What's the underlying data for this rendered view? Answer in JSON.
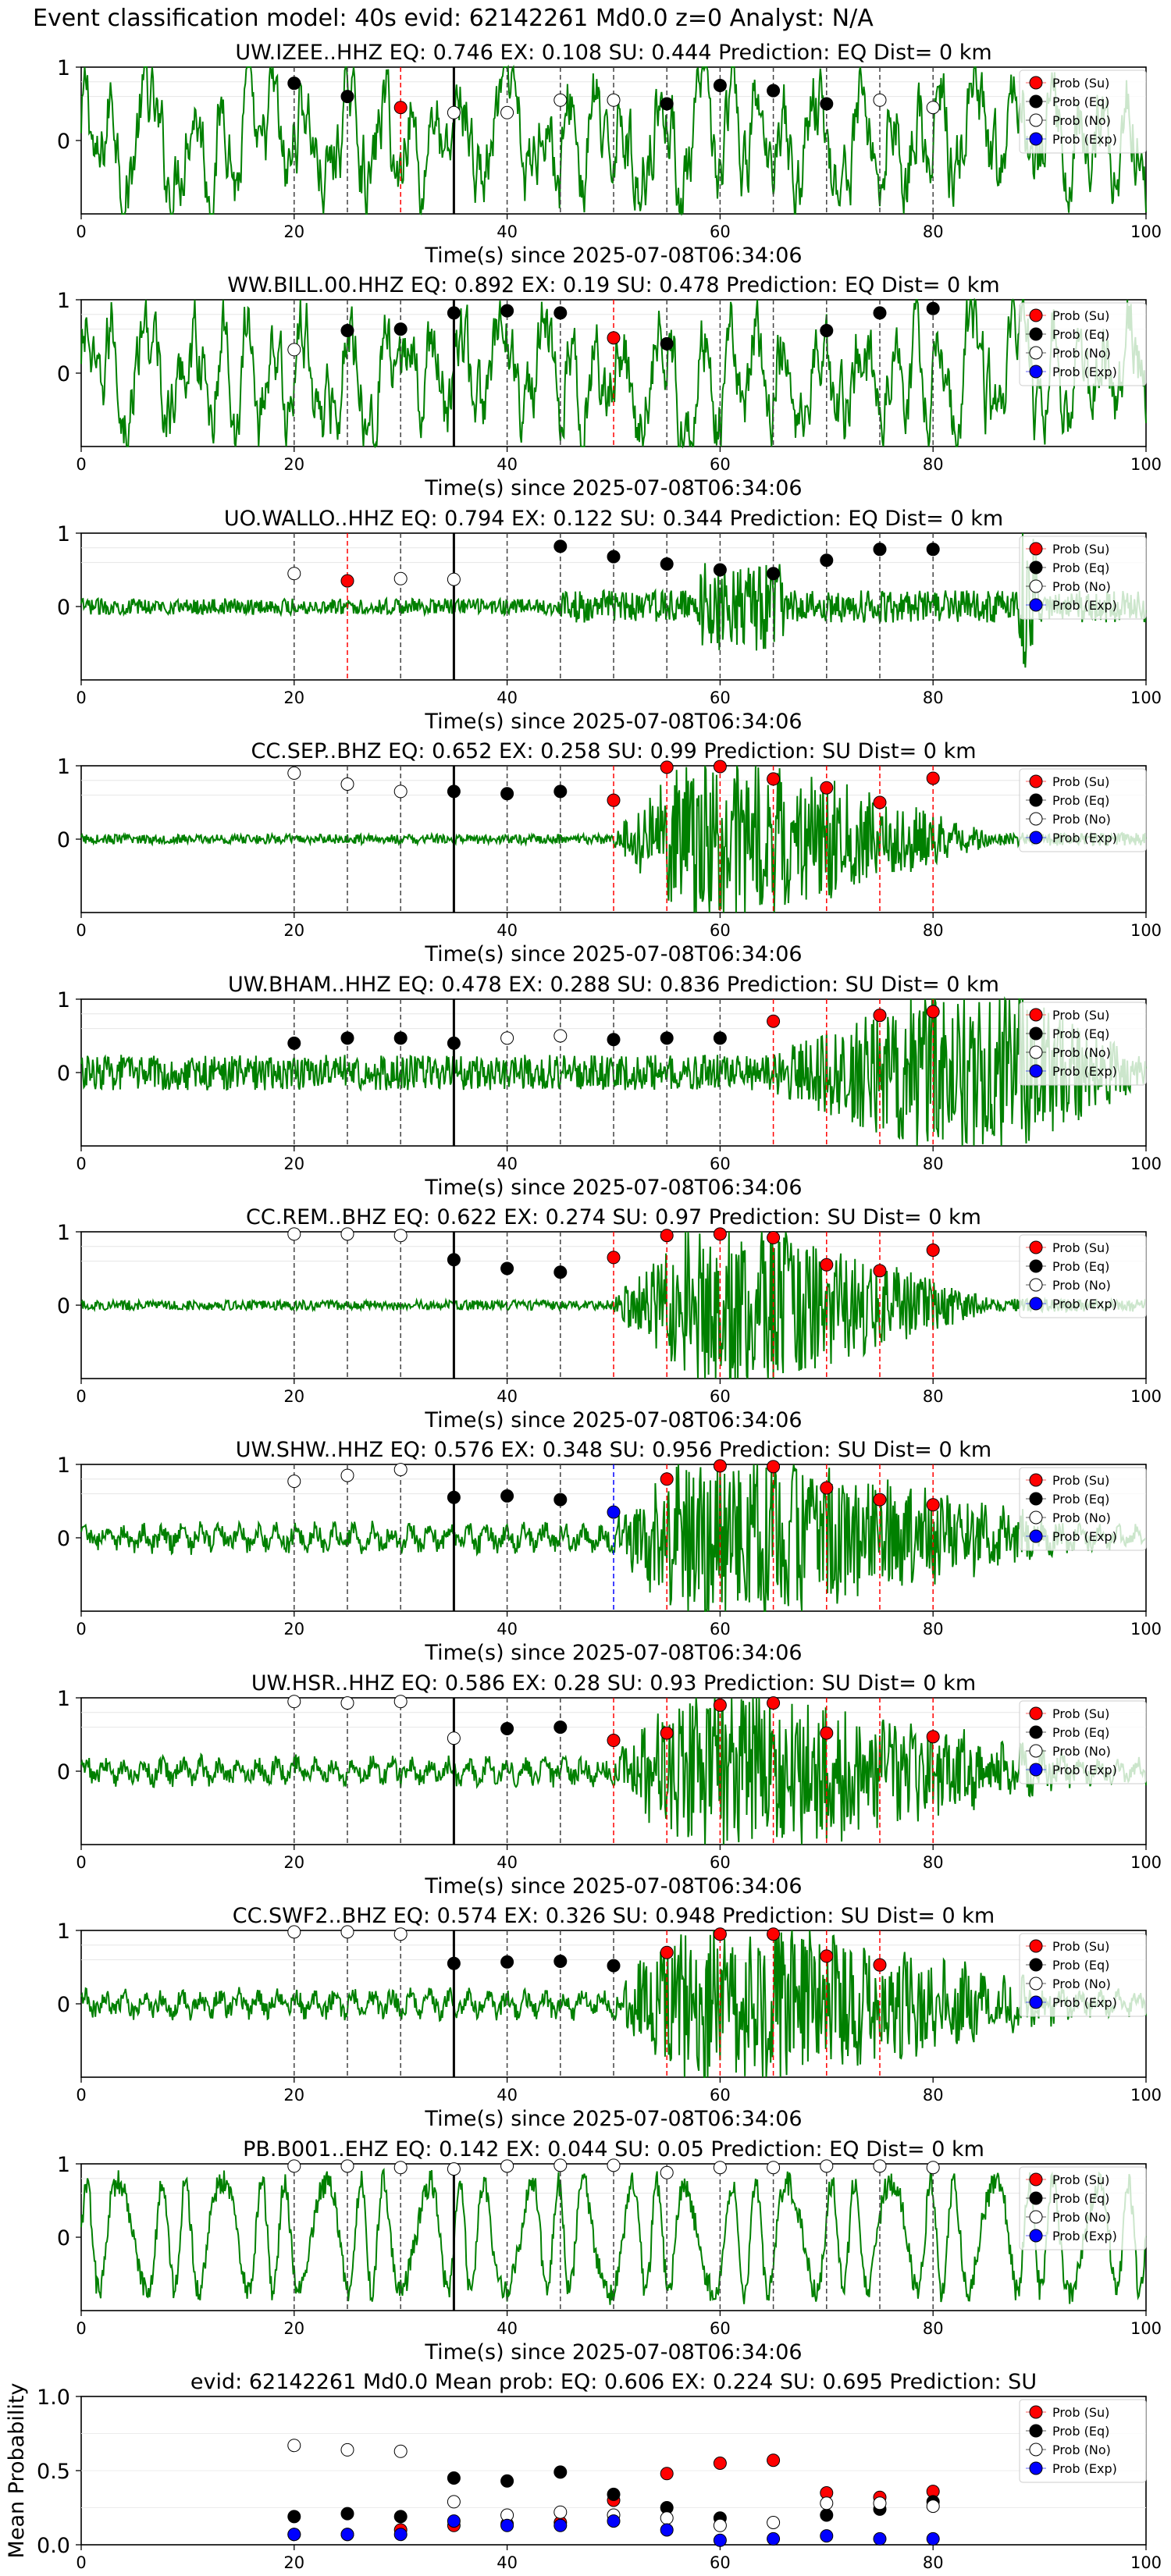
{
  "figure_title": "Event classification model: 40s evid: 62142261 Md0.0 z=0 Analyst: N/A",
  "colors": {
    "waveform": "#008000",
    "su": "#ff0000",
    "eq": "#000000",
    "no": "#ffffff",
    "exp": "#0000ff",
    "origin_line": "#000000"
  },
  "legend": [
    "Prob (Su)",
    "Prob (Eq)",
    "Prob (No)",
    "Prob (Exp)"
  ],
  "chart_data": [
    {
      "type": "line",
      "title": "UW.IZEE..HHZ   EQ: 0.746  EX: 0.108  SU: 0.444   Prediction: EQ    Dist= 0 km",
      "xlabel": "Time(s) since 2025-07-08T06:34:06",
      "xlim": [
        0,
        100
      ],
      "ylim": [
        -1,
        1
      ],
      "xticks": [
        "0",
        "20",
        "40",
        "60",
        "80",
        "100"
      ],
      "yticks": [
        "0",
        "1"
      ],
      "origin_time": 35,
      "waveform_style": "noisy",
      "window_times": [
        20,
        25,
        30,
        35,
        40,
        45,
        50,
        55,
        60,
        65,
        70,
        75,
        80
      ],
      "window_classes": [
        "eq",
        "eq",
        "su",
        "no",
        "no",
        "no",
        "no",
        "eq",
        "eq",
        "eq",
        "eq",
        "no",
        "no"
      ],
      "window_probs": [
        0.78,
        0.6,
        0.45,
        0.38,
        0.38,
        0.55,
        0.55,
        0.5,
        0.75,
        0.68,
        0.5,
        0.55,
        0.45
      ]
    },
    {
      "type": "line",
      "title": "WW.BILL.00.HHZ   EQ: 0.892  EX: 0.19  SU: 0.478   Prediction: EQ    Dist= 0 km",
      "xlabel": "Time(s) since 2025-07-08T06:34:06",
      "xlim": [
        0,
        100
      ],
      "ylim": [
        -1,
        1
      ],
      "xticks": [
        "0",
        "20",
        "40",
        "60",
        "80",
        "100"
      ],
      "yticks": [
        "0",
        "1"
      ],
      "origin_time": 35,
      "waveform_style": "noisy",
      "window_times": [
        20,
        25,
        30,
        35,
        40,
        45,
        50,
        55,
        60,
        65,
        70,
        75,
        80
      ],
      "window_classes": [
        "no",
        "eq",
        "eq",
        "eq",
        "eq",
        "eq",
        "su",
        "eq",
        "eq",
        "eq",
        "eq",
        "eq",
        "eq"
      ],
      "window_probs": [
        0.32,
        0.58,
        0.6,
        0.82,
        0.85,
        0.82,
        0.48,
        0.4,
        null,
        null,
        0.58,
        0.82,
        0.88
      ]
    },
    {
      "type": "line",
      "title": "UO.WALLO..HHZ   EQ: 0.794  EX: 0.122  SU: 0.344   Prediction: EQ    Dist= 0 km",
      "xlabel": "Time(s) since 2025-07-08T06:34:06",
      "xlim": [
        0,
        100
      ],
      "ylim": [
        -1,
        1
      ],
      "xticks": [
        "0",
        "20",
        "40",
        "60",
        "80",
        "100"
      ],
      "yticks": [
        "0",
        "1"
      ],
      "origin_time": 35,
      "waveform_style": "quiet",
      "window_times": [
        20,
        25,
        30,
        35,
        40,
        45,
        50,
        55,
        60,
        65,
        70,
        75,
        80
      ],
      "window_classes": [
        "no",
        "su",
        "no",
        "no",
        "eq",
        "eq",
        "eq",
        "eq",
        "eq",
        "eq",
        "eq",
        "eq",
        "eq"
      ],
      "window_probs": [
        0.45,
        0.35,
        0.38,
        0.37,
        null,
        0.82,
        0.68,
        0.58,
        0.5,
        0.45,
        0.63,
        0.78,
        0.78
      ]
    },
    {
      "type": "line",
      "title": "CC.SEP..BHZ   EQ: 0.652  EX: 0.258  SU: 0.99   Prediction: SU    Dist= 0 km",
      "xlabel": "Time(s) since 2025-07-08T06:34:06",
      "xlim": [
        0,
        100
      ],
      "ylim": [
        -1,
        1
      ],
      "xticks": [
        "0",
        "20",
        "40",
        "60",
        "80",
        "100"
      ],
      "yticks": [
        "0",
        "1"
      ],
      "origin_time": 35,
      "waveform_style": "burst",
      "window_times": [
        20,
        25,
        30,
        35,
        40,
        45,
        50,
        55,
        60,
        65,
        70,
        75,
        80
      ],
      "window_classes": [
        "no",
        "no",
        "no",
        "eq",
        "eq",
        "eq",
        "su",
        "su",
        "su",
        "su",
        "su",
        "su",
        "su"
      ],
      "window_probs": [
        0.9,
        0.75,
        0.65,
        0.65,
        0.62,
        0.65,
        0.53,
        0.98,
        0.99,
        0.82,
        0.7,
        0.5,
        0.83
      ]
    },
    {
      "type": "line",
      "title": "UW.BHAM..HHZ   EQ: 0.478  EX: 0.288  SU: 0.836   Prediction: SU    Dist= 0 km",
      "xlabel": "Time(s) since 2025-07-08T06:34:06",
      "xlim": [
        0,
        100
      ],
      "ylim": [
        -1,
        1
      ],
      "xticks": [
        "0",
        "20",
        "40",
        "60",
        "80",
        "100"
      ],
      "yticks": [
        "0",
        "1"
      ],
      "origin_time": 35,
      "waveform_style": "late-burst",
      "window_times": [
        20,
        25,
        30,
        35,
        40,
        45,
        50,
        55,
        60,
        65,
        70,
        75,
        80
      ],
      "window_classes": [
        "eq",
        "eq",
        "eq",
        "eq",
        "no",
        "no",
        "eq",
        "eq",
        "eq",
        "su",
        "su",
        "su",
        "su"
      ],
      "window_probs": [
        0.4,
        0.47,
        0.47,
        0.4,
        0.47,
        0.5,
        0.45,
        0.47,
        0.47,
        0.7,
        null,
        0.78,
        0.83
      ]
    },
    {
      "type": "line",
      "title": "CC.REM..BHZ   EQ: 0.622  EX: 0.274  SU: 0.97   Prediction: SU    Dist= 0 km",
      "xlabel": "Time(s) since 2025-07-08T06:34:06",
      "xlim": [
        0,
        100
      ],
      "ylim": [
        -1,
        1
      ],
      "xticks": [
        "0",
        "20",
        "40",
        "60",
        "80",
        "100"
      ],
      "yticks": [
        "0",
        "1"
      ],
      "origin_time": 35,
      "waveform_style": "burst",
      "window_times": [
        20,
        25,
        30,
        35,
        40,
        45,
        50,
        55,
        60,
        65,
        70,
        75,
        80
      ],
      "window_classes": [
        "no",
        "no",
        "no",
        "eq",
        "eq",
        "eq",
        "su",
        "su",
        "su",
        "su",
        "su",
        "su",
        "su"
      ],
      "window_probs": [
        0.97,
        0.97,
        0.95,
        0.62,
        0.5,
        0.45,
        0.65,
        0.95,
        0.97,
        0.92,
        0.55,
        0.47,
        0.75
      ]
    },
    {
      "type": "line",
      "title": "UW.SHW..HHZ   EQ: 0.576  EX: 0.348  SU: 0.956   Prediction: SU    Dist= 0 km",
      "xlabel": "Time(s) since 2025-07-08T06:34:06",
      "xlim": [
        0,
        100
      ],
      "ylim": [
        -1,
        1
      ],
      "xticks": [
        "0",
        "20",
        "40",
        "60",
        "80",
        "100"
      ],
      "yticks": [
        "0",
        "1"
      ],
      "origin_time": 35,
      "waveform_style": "smooth-burst",
      "window_times": [
        20,
        25,
        30,
        35,
        40,
        45,
        50,
        55,
        60,
        65,
        70,
        75,
        80
      ],
      "window_classes": [
        "no",
        "no",
        "no",
        "eq",
        "eq",
        "eq",
        "exp",
        "su",
        "su",
        "su",
        "su",
        "su",
        "su"
      ],
      "window_probs": [
        0.77,
        0.85,
        0.93,
        0.55,
        0.57,
        0.52,
        0.35,
        0.8,
        0.98,
        0.97,
        0.68,
        0.52,
        0.45
      ]
    },
    {
      "type": "line",
      "title": "UW.HSR..HHZ   EQ: 0.586  EX: 0.28  SU: 0.93   Prediction: SU    Dist= 0 km",
      "xlabel": "Time(s) since 2025-07-08T06:34:06",
      "xlim": [
        0,
        100
      ],
      "ylim": [
        -1,
        1
      ],
      "xticks": [
        "0",
        "20",
        "40",
        "60",
        "80",
        "100"
      ],
      "yticks": [
        "0",
        "1"
      ],
      "origin_time": 35,
      "waveform_style": "smooth-burst",
      "window_times": [
        20,
        25,
        30,
        35,
        40,
        45,
        50,
        55,
        60,
        65,
        70,
        75,
        80
      ],
      "window_classes": [
        "no",
        "no",
        "no",
        "no",
        "eq",
        "eq",
        "su",
        "su",
        "su",
        "su",
        "su",
        "su",
        "su"
      ],
      "window_probs": [
        0.95,
        0.93,
        0.95,
        0.45,
        0.58,
        0.6,
        0.42,
        0.52,
        0.9,
        0.93,
        0.52,
        null,
        0.47
      ]
    },
    {
      "type": "line",
      "title": "CC.SWF2..BHZ   EQ: 0.574  EX: 0.326  SU: 0.948   Prediction: SU    Dist= 0 km",
      "xlabel": "Time(s) since 2025-07-08T06:34:06",
      "xlim": [
        0,
        100
      ],
      "ylim": [
        -1,
        1
      ],
      "xticks": [
        "0",
        "20",
        "40",
        "60",
        "80",
        "100"
      ],
      "yticks": [
        "0",
        "1"
      ],
      "origin_time": 35,
      "waveform_style": "smooth-burst",
      "window_times": [
        20,
        25,
        30,
        35,
        40,
        45,
        50,
        55,
        60,
        65,
        70,
        75,
        80
      ],
      "window_classes": [
        "no",
        "no",
        "no",
        "eq",
        "eq",
        "eq",
        "eq",
        "su",
        "su",
        "su",
        "su",
        "su",
        null
      ],
      "window_probs": [
        0.98,
        0.98,
        0.95,
        0.55,
        0.57,
        0.58,
        0.52,
        0.7,
        0.95,
        0.95,
        0.65,
        0.53,
        null
      ]
    },
    {
      "type": "line",
      "title": "PB.B001..EHZ   EQ: 0.142  EX: 0.044  SU: 0.05   Prediction: EQ    Dist= 0 km",
      "xlabel": "Time(s) since 2025-07-08T06:34:06",
      "xlim": [
        0,
        100
      ],
      "ylim": [
        -1,
        1
      ],
      "xticks": [
        "0",
        "20",
        "40",
        "60",
        "80",
        "100"
      ],
      "yticks": [
        "0",
        "1"
      ],
      "origin_time": 35,
      "waveform_style": "periodic",
      "window_times": [
        20,
        25,
        30,
        35,
        40,
        45,
        50,
        55,
        60,
        65,
        70,
        75,
        80
      ],
      "window_classes": [
        "no",
        "no",
        "no",
        "no",
        "no",
        "no",
        "no",
        "no",
        "no",
        "no",
        "no",
        "no",
        "no"
      ],
      "window_probs": [
        0.97,
        0.97,
        0.95,
        0.93,
        0.97,
        0.98,
        0.98,
        0.88,
        0.95,
        0.95,
        0.97,
        0.97,
        0.95
      ]
    },
    {
      "type": "scatter",
      "title": "evid: 62142261  Md0.0   Mean prob:   EQ: 0.606  EX: 0.224  SU: 0.695   Prediction: SU",
      "ylabel": "Mean Probability",
      "xlim": [
        0,
        100
      ],
      "ylim": [
        0,
        1
      ],
      "xticks": [
        "0",
        "20",
        "40",
        "60",
        "80",
        "100"
      ],
      "yticks": [
        "0.0",
        "0.5",
        "1.0"
      ],
      "x": [
        20,
        25,
        30,
        35,
        40,
        45,
        50,
        55,
        60,
        65,
        70,
        75,
        80
      ],
      "series": [
        {
          "name": "Prob (Su)",
          "values": [
            0.07,
            0.07,
            0.1,
            0.13,
            0.14,
            0.15,
            0.3,
            0.48,
            0.55,
            0.57,
            0.35,
            0.32,
            0.36
          ]
        },
        {
          "name": "Prob (Eq)",
          "values": [
            0.19,
            0.21,
            0.19,
            0.45,
            0.43,
            0.49,
            0.34,
            0.25,
            0.18,
            null,
            0.2,
            0.24,
            0.29
          ]
        },
        {
          "name": "Prob (No)",
          "values": [
            0.67,
            0.64,
            0.63,
            0.29,
            0.2,
            0.22,
            0.2,
            0.18,
            0.13,
            0.15,
            0.28,
            0.28,
            0.26
          ]
        },
        {
          "name": "Prob (Exp)",
          "values": [
            0.07,
            0.07,
            0.07,
            0.16,
            0.13,
            0.13,
            0.16,
            0.1,
            0.03,
            0.04,
            0.06,
            0.04,
            0.04
          ]
        }
      ]
    }
  ]
}
